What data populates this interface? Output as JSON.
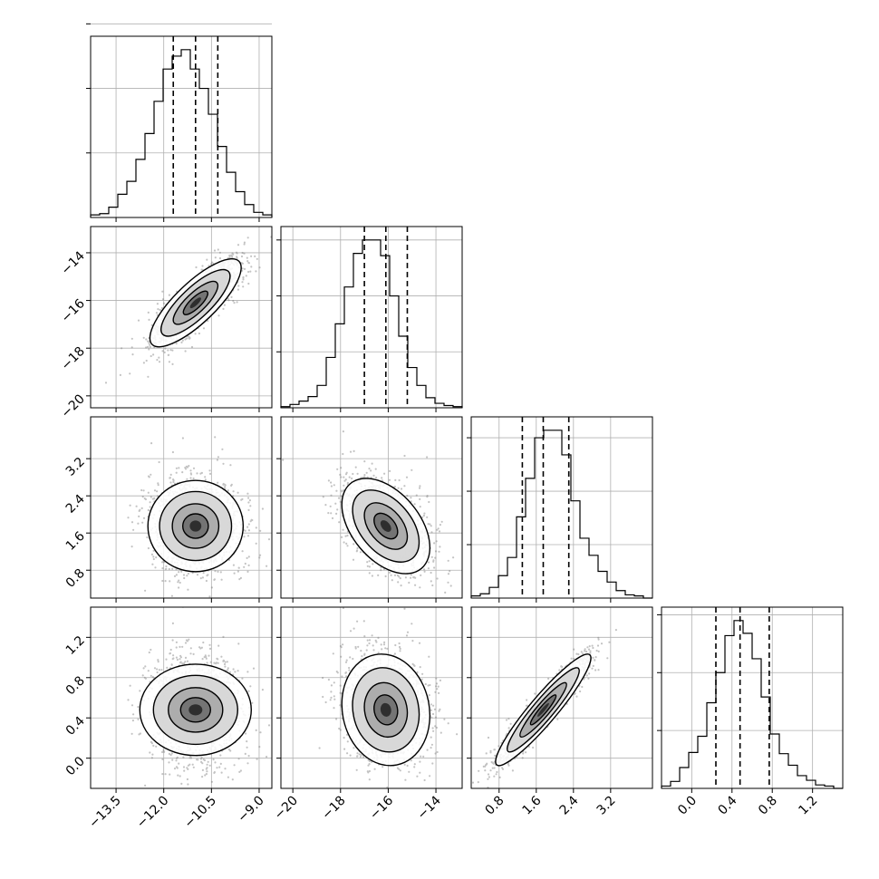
{
  "chart_data": {
    "type": "corner",
    "grid": true,
    "parameters": [
      {
        "range": [
          -14.3,
          -8.6
        ],
        "ticks": [
          -13.5,
          -12.0,
          -10.5,
          -9.0
        ],
        "tick_labels": [
          "−13.5",
          "−12.0",
          "−10.5",
          "−9.0"
        ],
        "quantiles": [
          -11.7,
          -11.0,
          -10.3
        ]
      },
      {
        "range": [
          -20.5,
          -12.9
        ],
        "ticks": [
          -20,
          -18,
          -16,
          -14
        ],
        "tick_labels": [
          "−20",
          "−18",
          "−16",
          "−14"
        ],
        "quantiles": [
          -17.0,
          -16.1,
          -15.2
        ]
      },
      {
        "range": [
          0.2,
          4.1
        ],
        "ticks": [
          0.8,
          1.6,
          2.4,
          3.2
        ],
        "tick_labels": [
          "0.8",
          "1.6",
          "2.4",
          "3.2"
        ],
        "quantiles": [
          1.3,
          1.75,
          2.3
        ]
      },
      {
        "range": [
          -0.3,
          1.5
        ],
        "ticks": [
          0.0,
          0.4,
          0.8,
          1.2
        ],
        "tick_labels": [
          "0.0",
          "0.4",
          "0.8",
          "1.2"
        ],
        "quantiles": [
          0.24,
          0.48,
          0.77
        ]
      }
    ],
    "histograms": [
      {
        "edges_start": -14.3,
        "bin_width": 0.285,
        "counts": [
          2,
          3,
          8,
          18,
          28,
          45,
          65,
          90,
          115,
          125,
          130,
          115,
          100,
          80,
          55,
          35,
          20,
          10,
          4,
          2
        ]
      },
      {
        "edges_start": -20.5,
        "bin_width": 0.38,
        "counts": [
          1,
          3,
          6,
          10,
          20,
          45,
          75,
          108,
          138,
          150,
          150,
          136,
          100,
          64,
          36,
          20,
          9,
          4,
          2,
          1
        ]
      },
      {
        "edges_start": 0.2,
        "bin_width": 0.195,
        "counts": [
          2,
          4,
          10,
          21,
          38,
          76,
          112,
          150,
          157,
          157,
          134,
          91,
          56,
          40,
          25,
          15,
          7,
          3,
          2,
          0
        ]
      },
      {
        "edges_start": -0.3,
        "bin_width": 0.09,
        "counts": [
          2,
          6,
          18,
          31,
          45,
          74,
          100,
          132,
          145,
          134,
          112,
          79,
          47,
          30,
          20,
          11,
          7,
          3,
          2,
          0
        ]
      }
    ],
    "pairs": [
      {
        "row": 1,
        "col": 0,
        "mean": [
          -11.0,
          -16.1
        ],
        "sd": [
          0.7,
          0.9
        ],
        "rho": 0.8
      },
      {
        "row": 2,
        "col": 0,
        "mean": [
          -11.0,
          1.75
        ],
        "sd": [
          0.7,
          0.5
        ],
        "rho": 0.0
      },
      {
        "row": 2,
        "col": 1,
        "mean": [
          -16.1,
          1.75
        ],
        "sd": [
          0.9,
          0.5
        ],
        "rho": -0.45
      },
      {
        "row": 3,
        "col": 0,
        "mean": [
          -11.0,
          0.48
        ],
        "sd": [
          0.7,
          0.27
        ],
        "rho": 0.0
      },
      {
        "row": 3,
        "col": 1,
        "mean": [
          -16.1,
          0.48
        ],
        "sd": [
          0.9,
          0.27
        ],
        "rho": -0.1
      },
      {
        "row": 3,
        "col": 2,
        "mean": [
          1.75,
          0.48
        ],
        "sd": [
          0.5,
          0.27
        ],
        "rho": 0.93
      }
    ]
  }
}
